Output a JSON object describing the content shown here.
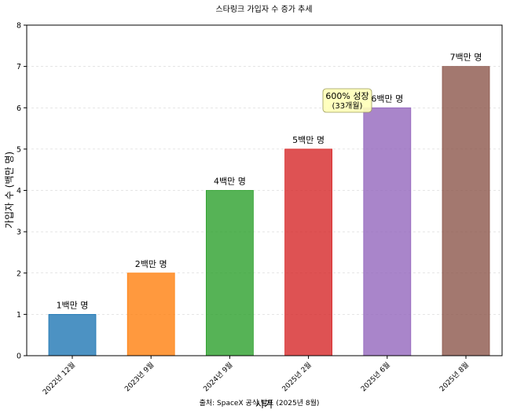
{
  "chart_data": {
    "type": "bar",
    "title": "스타링크 가입자 수 증가 추세",
    "xlabel": "시기",
    "ylabel": "가입자 수 (백만 명)",
    "categories": [
      "2022년 12월",
      "2023년 9월",
      "2024년 9월",
      "2025년 2월",
      "2025년 6월",
      "2025년 8월"
    ],
    "values": [
      1,
      2,
      4,
      5,
      6,
      7
    ],
    "data_labels": [
      "1백만 명",
      "2백만 명",
      "4백만 명",
      "5백만 명",
      "6백만 명",
      "7백만 명"
    ],
    "colors": [
      "#1f77b4",
      "#ff7f0e",
      "#2ca02c",
      "#d62728",
      "#9467bd",
      "#8c564b"
    ],
    "ylim": [
      0,
      8
    ],
    "yticks": [
      0,
      1,
      2,
      3,
      4,
      5,
      6,
      7,
      8
    ],
    "grid": "horizontal",
    "annotation": {
      "line1": "600% 성장",
      "line2": "(33개월)"
    },
    "source_note": "출처: SpaceX 공식 발표 (2025년 8월)"
  }
}
